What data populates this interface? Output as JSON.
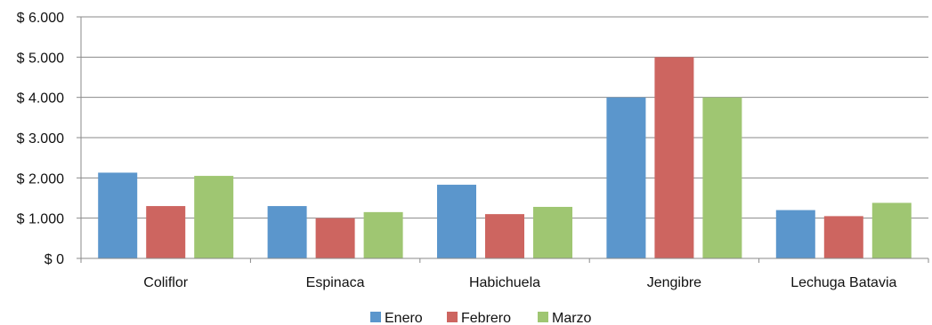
{
  "chart_data": {
    "type": "bar",
    "title": "",
    "xlabel": "",
    "ylabel": "",
    "categories": [
      "Coliflor",
      "Espinaca",
      "Habichuela",
      "Jengibre",
      "Lechuga Batavia"
    ],
    "series": [
      {
        "name": "Enero",
        "color": "#5b96cc",
        "values": [
          2130,
          1300,
          1830,
          4000,
          1200
        ]
      },
      {
        "name": "Febrero",
        "color": "#cd6560",
        "values": [
          1300,
          1000,
          1100,
          5000,
          1050
        ]
      },
      {
        "name": "Marzo",
        "color": "#9fc672",
        "values": [
          2050,
          1150,
          1280,
          4000,
          1380
        ]
      }
    ],
    "ylim": [
      0,
      6000
    ],
    "yticks": [
      0,
      1000,
      2000,
      3000,
      4000,
      5000,
      6000
    ],
    "ytick_labels": [
      "$ 0",
      "$ 1.000",
      "$ 2.000",
      "$ 3.000",
      "$ 4.000",
      "$ 5.000",
      "$ 6.000"
    ],
    "grid": true,
    "legend_position": "bottom"
  }
}
